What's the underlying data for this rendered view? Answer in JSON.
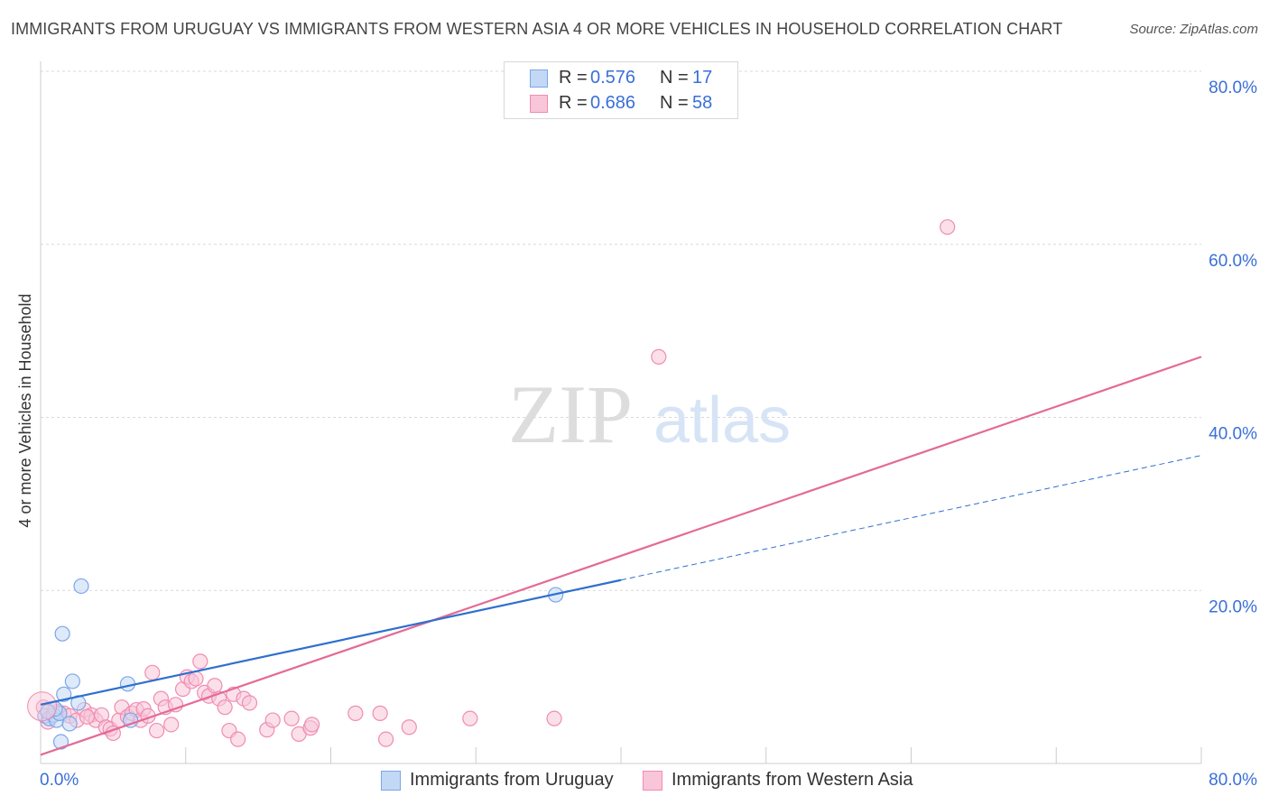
{
  "title": "IMMIGRANTS FROM URUGUAY VS IMMIGRANTS FROM WESTERN ASIA 4 OR MORE VEHICLES IN HOUSEHOLD CORRELATION CHART",
  "source": "Source: ZipAtlas.com",
  "watermark": {
    "zip": "ZIP",
    "atlas": "atlas"
  },
  "legend_top": [
    {
      "r_label": "R = ",
      "r_value": "0.576",
      "n_label": "N = ",
      "n_value": "17"
    },
    {
      "r_label": "R = ",
      "r_value": "0.686",
      "n_label": "N = ",
      "n_value": "58"
    }
  ],
  "chart_data": {
    "type": "scatter",
    "title": "IMMIGRANTS FROM URUGUAY VS IMMIGRANTS FROM WESTERN ASIA 4 OR MORE VEHICLES IN HOUSEHOLD CORRELATION CHART",
    "xlabel": "",
    "ylabel": "4 or more Vehicles in Household",
    "xlim": [
      0,
      80
    ],
    "ylim": [
      0,
      80
    ],
    "x_tick_labels": [
      "0.0%",
      "80.0%"
    ],
    "y_ticks": [
      20,
      40,
      60,
      80
    ],
    "y_tick_labels": [
      "20.0%",
      "40.0%",
      "60.0%",
      "80.0%"
    ],
    "grid": true,
    "legend_placement": "bottom",
    "series": [
      {
        "name": "Immigrants from Uruguay",
        "color": "#7aa6e8",
        "fill": "#c3d8f5",
        "line_color": "#2f6fd0",
        "r": 0.576,
        "n": 17,
        "trend": {
          "x": [
            0,
            40
          ],
          "y": [
            6.8,
            21.2
          ],
          "extend_to_x": 80,
          "extend_y": 35.6
        },
        "points": [
          [
            0.3,
            5.5
          ],
          [
            0.6,
            5.2
          ],
          [
            0.9,
            5.6
          ],
          [
            1.1,
            5.0
          ],
          [
            1.3,
            5.8
          ],
          [
            1.4,
            2.5
          ],
          [
            1.5,
            15.0
          ],
          [
            1.6,
            8.0
          ],
          [
            2.0,
            4.6
          ],
          [
            2.2,
            9.5
          ],
          [
            2.6,
            7.0
          ],
          [
            2.8,
            20.5
          ],
          [
            6.0,
            9.2
          ],
          [
            6.2,
            5.0
          ],
          [
            35.5,
            19.5
          ],
          [
            1.0,
            6.3
          ],
          [
            0.5,
            6.0
          ]
        ]
      },
      {
        "name": "Immigrants from Western Asia",
        "color": "#f08cb0",
        "fill": "#f8c6d8",
        "line_color": "#e46a96",
        "r": 0.686,
        "n": 58,
        "trend": {
          "x": [
            0,
            80
          ],
          "y": [
            1.0,
            47.0
          ]
        },
        "points": [
          [
            0.2,
            6.5
          ],
          [
            0.8,
            5.5
          ],
          [
            1.2,
            6.0
          ],
          [
            1.6,
            5.8
          ],
          [
            2.0,
            5.5
          ],
          [
            2.5,
            5.0
          ],
          [
            3.0,
            6.2
          ],
          [
            3.5,
            5.6
          ],
          [
            3.8,
            5.0
          ],
          [
            4.2,
            5.6
          ],
          [
            4.5,
            4.2
          ],
          [
            4.8,
            4.0
          ],
          [
            5.0,
            3.5
          ],
          [
            5.4,
            5.0
          ],
          [
            5.6,
            6.5
          ],
          [
            6.0,
            5.4
          ],
          [
            6.3,
            5.8
          ],
          [
            6.6,
            6.2
          ],
          [
            6.9,
            5.0
          ],
          [
            7.1,
            6.3
          ],
          [
            7.4,
            5.5
          ],
          [
            7.7,
            10.5
          ],
          [
            8.0,
            3.8
          ],
          [
            8.3,
            7.5
          ],
          [
            8.6,
            6.5
          ],
          [
            9.0,
            4.5
          ],
          [
            9.3,
            6.8
          ],
          [
            9.8,
            8.6
          ],
          [
            10.1,
            10.0
          ],
          [
            10.4,
            9.5
          ],
          [
            10.7,
            9.8
          ],
          [
            11.0,
            11.8
          ],
          [
            11.3,
            8.2
          ],
          [
            11.6,
            7.8
          ],
          [
            12.0,
            9.0
          ],
          [
            12.3,
            7.5
          ],
          [
            12.7,
            6.5
          ],
          [
            13.0,
            3.8
          ],
          [
            13.3,
            8.0
          ],
          [
            13.6,
            2.8
          ],
          [
            14.0,
            7.5
          ],
          [
            14.4,
            7.0
          ],
          [
            15.6,
            3.9
          ],
          [
            16.0,
            5.0
          ],
          [
            17.3,
            5.2
          ],
          [
            17.8,
            3.4
          ],
          [
            18.6,
            4.1
          ],
          [
            18.7,
            4.5
          ],
          [
            21.7,
            5.8
          ],
          [
            23.4,
            5.8
          ],
          [
            23.8,
            2.8
          ],
          [
            25.4,
            4.2
          ],
          [
            29.6,
            5.2
          ],
          [
            35.4,
            5.2
          ],
          [
            42.6,
            47.0
          ],
          [
            62.5,
            62.0
          ],
          [
            0.5,
            4.8
          ],
          [
            3.2,
            5.4
          ]
        ]
      }
    ]
  }
}
